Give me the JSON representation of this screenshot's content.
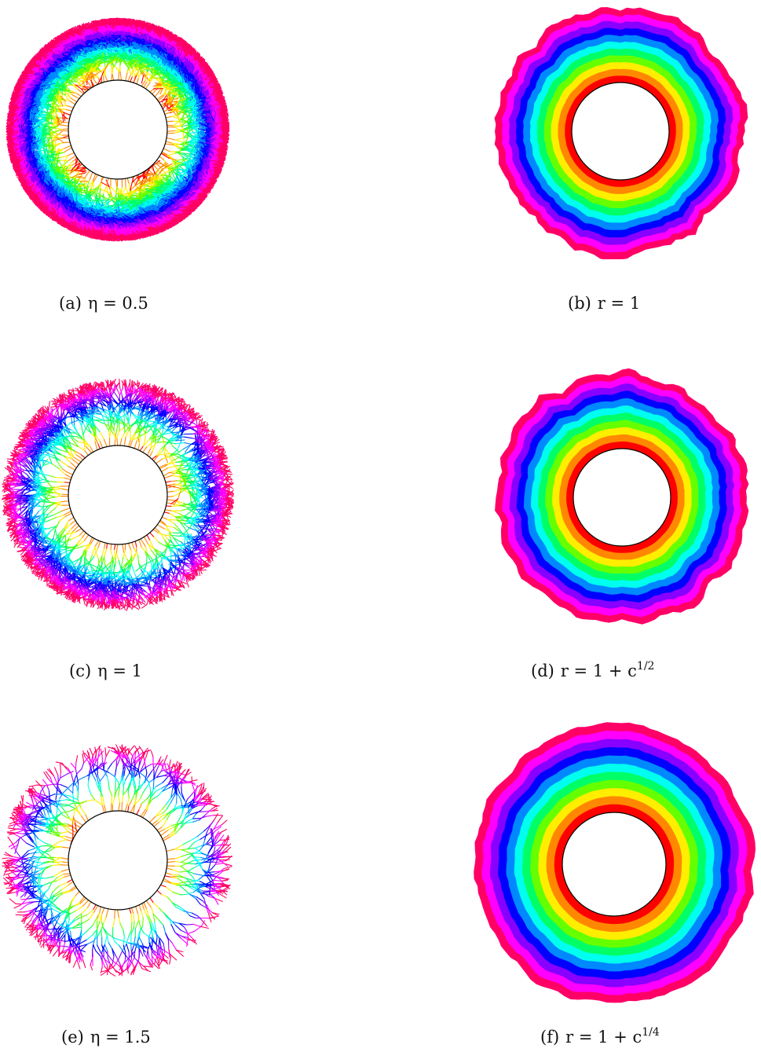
{
  "figure": {
    "panels": [
      {
        "id": "a",
        "tag": "(a)",
        "math": "η = 0.5",
        "sup": "",
        "kind": "tree",
        "eta": 0.5,
        "colors": [
          "#ff0000",
          "#ff8800",
          "#ffee00",
          "#66ff00",
          "#00ff66",
          "#00ffee",
          "#0088ff",
          "#0000ff",
          "#8800ff",
          "#ff00ff",
          "#ff0066"
        ]
      },
      {
        "id": "b",
        "tag": "(b)",
        "math": "r = 1",
        "sup": "",
        "kind": "rings",
        "colors": [
          "#ff0000",
          "#ff8800",
          "#ffee00",
          "#66ff00",
          "#00ff66",
          "#00ffee",
          "#0088ff",
          "#0000ff",
          "#8800ff",
          "#ff00ff",
          "#ff0066"
        ]
      },
      {
        "id": "c",
        "tag": "(c)",
        "math": "η = 1",
        "sup": "",
        "kind": "tree",
        "eta": 1,
        "colors": [
          "#ff0000",
          "#ff8800",
          "#ffee00",
          "#66ff00",
          "#00ff66",
          "#00ffee",
          "#0088ff",
          "#0000ff",
          "#8800ff",
          "#ff00ff",
          "#ff0066"
        ]
      },
      {
        "id": "d",
        "tag": "(d)",
        "math": "r = 1 + c",
        "sup": "1/2",
        "kind": "rings",
        "colors": [
          "#ff0000",
          "#ff8800",
          "#ffee00",
          "#66ff00",
          "#00ff66",
          "#00ffee",
          "#0088ff",
          "#0000ff",
          "#8800ff",
          "#ff00ff",
          "#ff0066"
        ]
      },
      {
        "id": "e",
        "tag": "(e)",
        "math": "η = 1.5",
        "sup": "",
        "kind": "tree",
        "eta": 1.5,
        "colors": [
          "#ff0000",
          "#ff8800",
          "#ffee00",
          "#66ff00",
          "#00ff66",
          "#00ffee",
          "#0088ff",
          "#0000ff",
          "#8800ff",
          "#ff00ff",
          "#ff0066"
        ]
      },
      {
        "id": "f",
        "tag": "(f)",
        "math": "r = 1 + c",
        "sup": "1/4",
        "kind": "rings",
        "colors": [
          "#ff0000",
          "#ff8800",
          "#ffee00",
          "#66ff00",
          "#00ff66",
          "#00ffee",
          "#0088ff",
          "#0000ff",
          "#8800ff",
          "#ff00ff",
          "#ff0066"
        ]
      }
    ]
  }
}
